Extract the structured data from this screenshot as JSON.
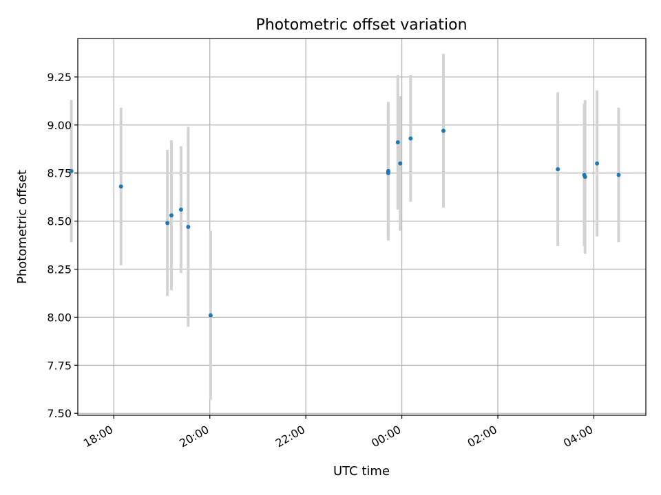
{
  "chart_data": {
    "type": "scatter",
    "title": "Photometric offset variation",
    "xlabel": "UTC time",
    "ylabel": "Photometric offset",
    "x_axis": {
      "kind": "time",
      "tick_labels": [
        "18:00",
        "20:00",
        "22:00",
        "00:00",
        "02:00",
        "04:00"
      ],
      "tick_times": [
        "18:00",
        "20:00",
        "22:00",
        "00:00",
        "02:00",
        "04:00"
      ],
      "range": [
        "17:15",
        "05:05"
      ]
    },
    "y_axis": {
      "ylim": [
        7.49,
        9.45
      ],
      "tick_values": [
        7.5,
        7.75,
        8.0,
        8.25,
        8.5,
        8.75,
        9.0,
        9.25
      ],
      "tick_labels": [
        "7.50",
        "7.75",
        "8.00",
        "8.25",
        "8.50",
        "8.75",
        "9.00",
        "9.25"
      ]
    },
    "grid": true,
    "series": [
      {
        "marker_color": "#1f77b4",
        "errorbar_color": "#d3d3d3",
        "points": [
          {
            "t": "17:07",
            "y": 8.76,
            "err": 0.37
          },
          {
            "t": "18:09",
            "y": 8.68,
            "err": 0.41
          },
          {
            "t": "19:07",
            "y": 8.49,
            "err": 0.38
          },
          {
            "t": "19:12",
            "y": 8.53,
            "err": 0.39
          },
          {
            "t": "19:24",
            "y": 8.56,
            "err": 0.33
          },
          {
            "t": "19:33",
            "y": 8.47,
            "err": 0.52
          },
          {
            "t": "20:01",
            "y": 8.01,
            "err": 0.44
          },
          {
            "t": "23:43",
            "y": 8.76,
            "err": 0.36
          },
          {
            "t": "23:43",
            "y": 8.75,
            "err": 0.35
          },
          {
            "t": "23:55",
            "y": 8.91,
            "err": 0.35
          },
          {
            "t": "23:58",
            "y": 8.8,
            "err": 0.35
          },
          {
            "t": "00:11",
            "y": 8.93,
            "err": 0.33
          },
          {
            "t": "00:52",
            "y": 8.97,
            "err": 0.4
          },
          {
            "t": "03:15",
            "y": 8.77,
            "err": 0.4
          },
          {
            "t": "03:48",
            "y": 8.74,
            "err": 0.37
          },
          {
            "t": "03:49",
            "y": 8.73,
            "err": 0.4
          },
          {
            "t": "04:04",
            "y": 8.8,
            "err": 0.38
          },
          {
            "t": "04:31",
            "y": 8.74,
            "err": 0.35
          }
        ]
      }
    ]
  }
}
